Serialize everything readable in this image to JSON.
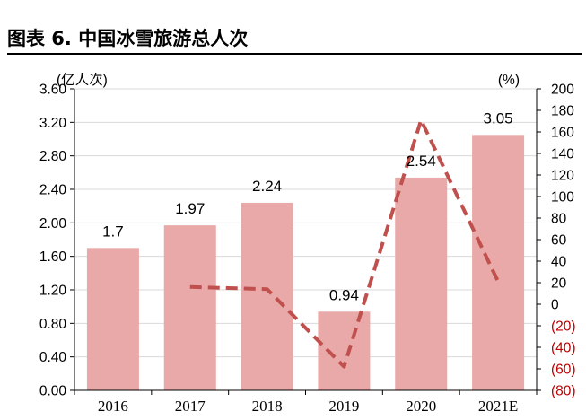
{
  "header": {
    "title": "图表 6. 中国冰雪旅游总人次"
  },
  "chart_data": {
    "type": "bar",
    "categories": [
      "2016",
      "2017",
      "2018",
      "2019",
      "2020",
      "2021E"
    ],
    "series": [
      {
        "values": [
          1.7,
          1.97,
          2.24,
          0.94,
          2.54,
          3.05
        ],
        "value_labels": [
          "1.7",
          "1.97",
          "2.24",
          "0.94",
          "2.54",
          "3.05"
        ],
        "color": "#e8a9a8",
        "axis": "left"
      },
      {
        "type": "line",
        "values": [
          null,
          16,
          14,
          -58,
          171,
          21
        ],
        "color": "#c0504d",
        "style": "dashed",
        "axis": "right"
      }
    ],
    "ylabel_left": "(亿人次)",
    "ylabel_right": "(%)",
    "ylim_left": [
      0,
      3.6
    ],
    "ylim_right": [
      -80,
      200
    ],
    "yticks_left": [
      "0.00",
      "0.40",
      "0.80",
      "1.20",
      "1.60",
      "2.00",
      "2.40",
      "2.80",
      "3.20",
      "3.60"
    ],
    "yticks_right": [
      "(80)",
      "(60)",
      "(40)",
      "(20)",
      "0",
      "20",
      "40",
      "60",
      "80",
      "100",
      "120",
      "140",
      "160",
      "180",
      "200"
    ],
    "negative_tick_color": "#c00000",
    "grid": "horizontal"
  }
}
